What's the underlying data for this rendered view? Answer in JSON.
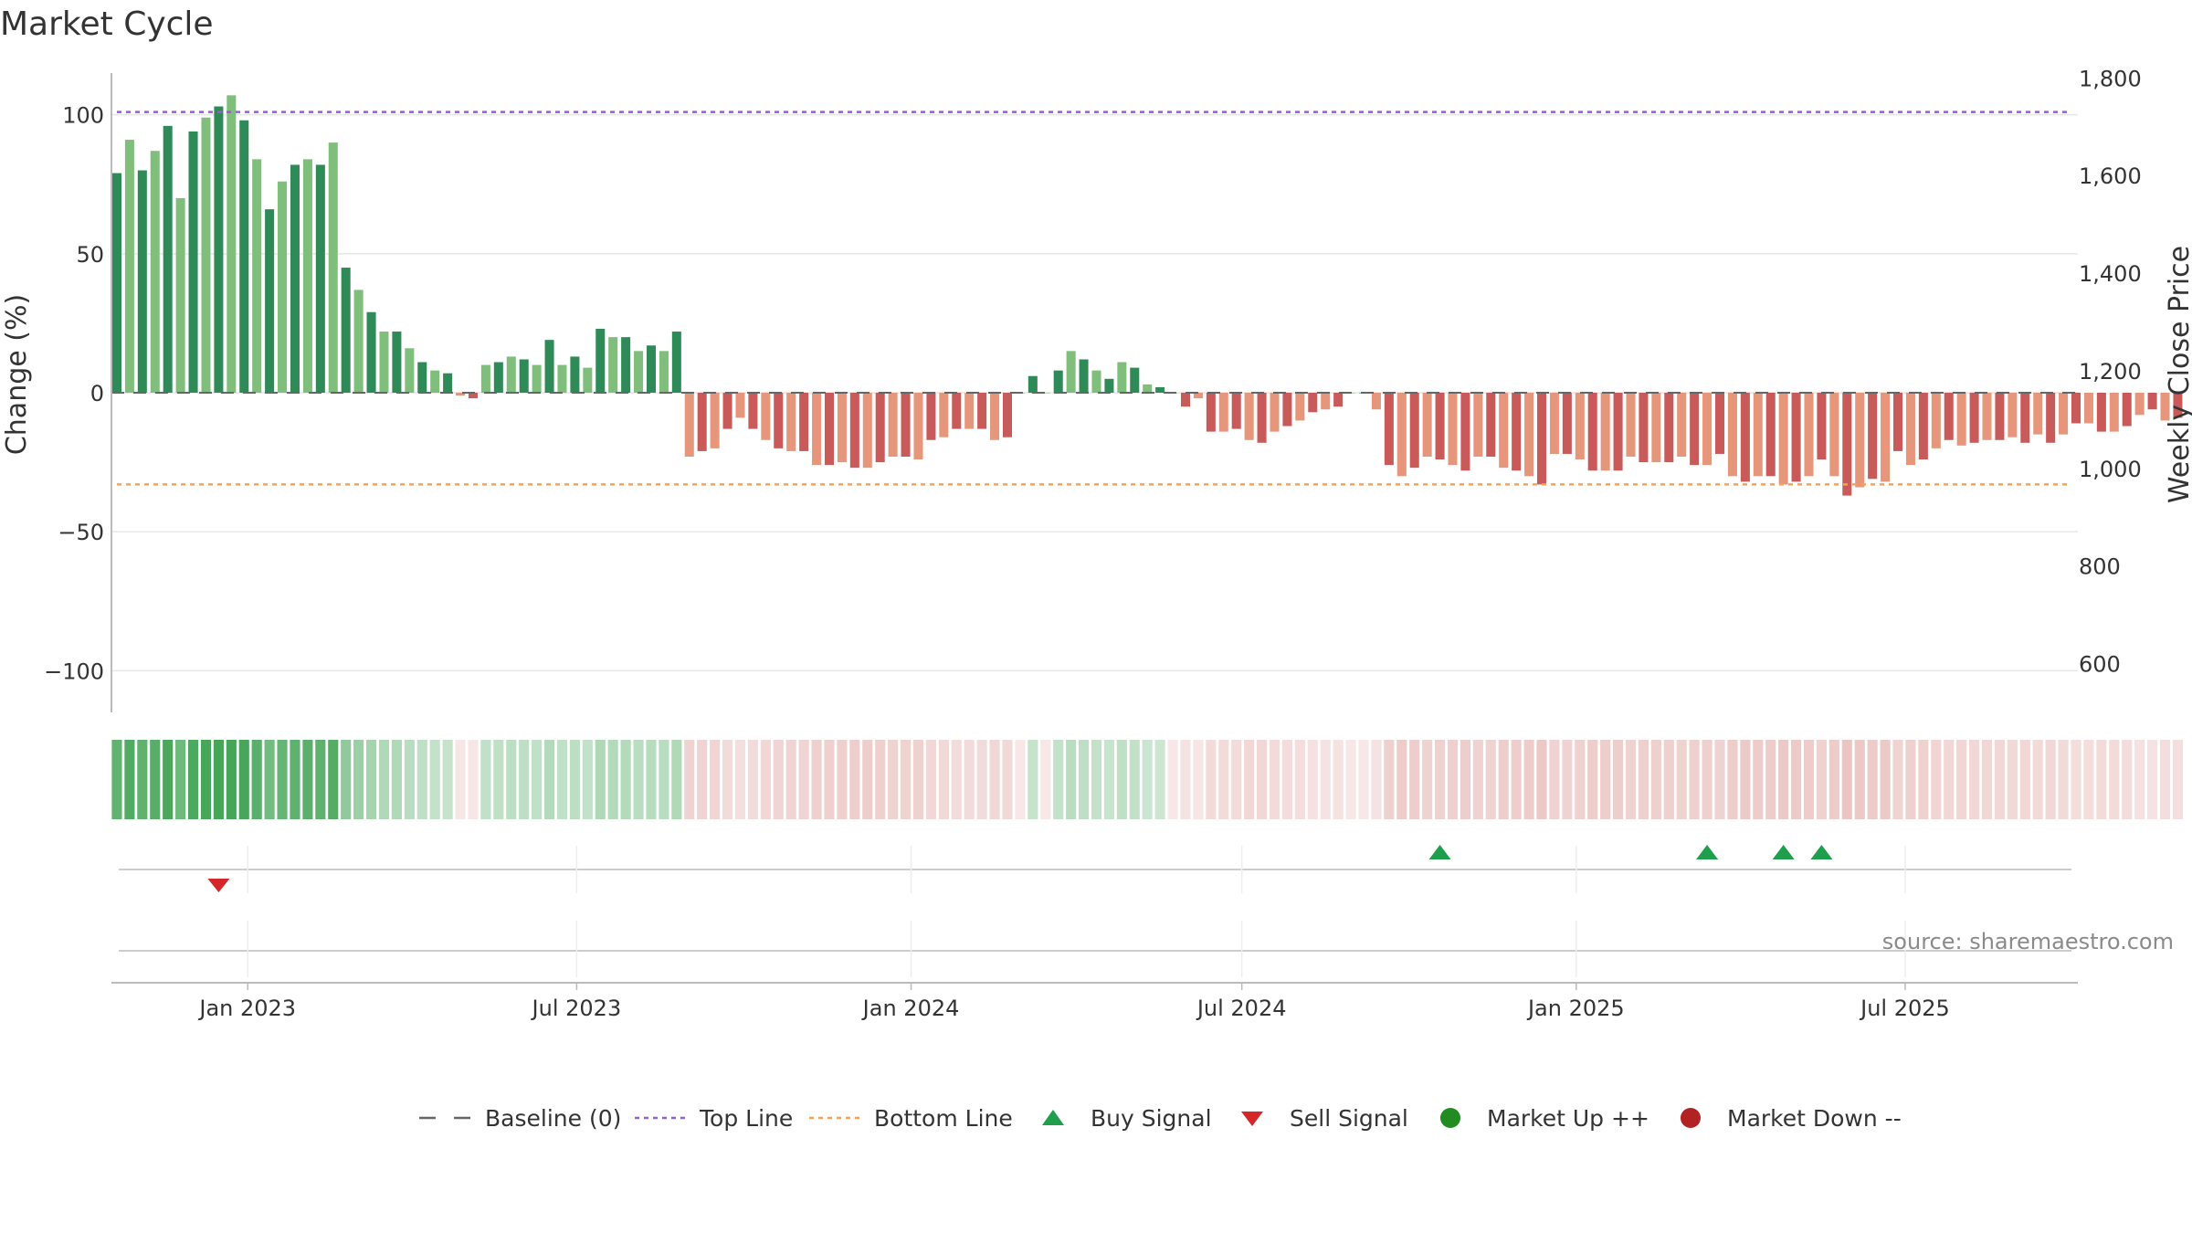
{
  "chart_data": {
    "type": "bar",
    "title": "Market Cycle",
    "ylabel": "Change (%)",
    "y2label": "Weekly Close Price",
    "ylim": [
      -115,
      115
    ],
    "y2lim": [
      500,
      1810
    ],
    "yticks": [
      100,
      50,
      0,
      -50,
      -100
    ],
    "ytick_labels": [
      "100",
      "50",
      "0",
      "−50",
      "−100"
    ],
    "y2ticks": [
      1800,
      1600,
      1400,
      1200,
      1000,
      800,
      600
    ],
    "y2tick_labels": [
      "1,800",
      "1,600",
      "1,400",
      "1,200",
      "1,000",
      "800",
      "600"
    ],
    "x_start": "2022-10-18",
    "x_end": "2025-10-04",
    "xticks": [
      "2023-01-01",
      "2023-07-01",
      "2024-01-01",
      "2024-07-01",
      "2025-01-01",
      "2025-07-01"
    ],
    "xtick_labels": [
      "Jan 2023",
      "Jul 2023",
      "Jan 2024",
      "Jul 2024",
      "Jan 2025",
      "Jul 2025"
    ],
    "bar_start": "2022-10-21",
    "bar_interval_days": 7,
    "top_line": 101,
    "bottom_line": -33,
    "values": [
      79,
      91,
      80,
      87,
      96,
      70,
      94,
      99,
      103,
      107,
      98,
      84,
      66,
      76,
      82,
      84,
      82,
      90,
      45,
      37,
      29,
      22,
      22,
      16,
      11,
      8,
      7,
      -1,
      -2,
      10,
      11,
      13,
      12,
      10,
      19,
      10,
      13,
      9,
      23,
      20,
      20,
      15,
      17,
      15,
      22,
      -23,
      -21,
      -20,
      -13,
      -9,
      -13,
      -17,
      -20,
      -21,
      -21,
      -26,
      -26,
      -25,
      -27,
      -27,
      -25,
      -23,
      -23,
      -24,
      -17,
      -16,
      -13,
      -13,
      -13,
      -17,
      -16,
      0,
      6,
      0,
      8,
      15,
      12,
      8,
      5,
      11,
      9,
      3,
      2,
      0,
      -5,
      -2,
      -14,
      -14,
      -13,
      -17,
      -18,
      -14,
      -12,
      -10,
      -7,
      -6,
      -5,
      0,
      0,
      -6,
      -26,
      -30,
      -27,
      -23,
      -24,
      -26,
      -28,
      -23,
      -23,
      -27,
      -28,
      -30,
      -33,
      -22,
      -22,
      -24,
      -28,
      -28,
      -28,
      -23,
      -25,
      -25,
      -25,
      -23,
      -26,
      -26,
      -22,
      -30,
      -32,
      -30,
      -30,
      -33,
      -32,
      -30,
      -24,
      -30,
      -37,
      -34,
      -31,
      -32,
      -21,
      -26,
      -24,
      -20,
      -17,
      -19,
      -18,
      -17,
      -17,
      -16,
      -18,
      -15,
      -18,
      -15,
      -11,
      -11,
      -14,
      -14,
      -12,
      -8,
      -6,
      -10,
      -9
    ],
    "buy_signals": [
      "2024-10-18",
      "2025-03-14",
      "2025-04-25",
      "2025-05-16"
    ],
    "sell_signals": [
      "2022-12-16"
    ],
    "market_up_markers": [],
    "market_down_markers": [],
    "legend": {
      "position": "bottom",
      "entries": [
        "Baseline (0)",
        "Top Line",
        "Bottom Line",
        "Buy Signal",
        "Sell Signal",
        "Market Up ++",
        "Market Down --"
      ]
    },
    "source": "source: sharemaestro.com",
    "colors": {
      "up_dark": "#2e8b57",
      "up_light": "#7fbf7b",
      "down_dark": "#c85a5a",
      "down_light": "#e6967a",
      "top_line": "#9a5ad9",
      "bottom_line": "#f0a35c",
      "baseline": "#666666",
      "buy": "#1f9e4c",
      "sell": "#d62728",
      "market_up": "#228b22",
      "market_down": "#b22222"
    }
  }
}
